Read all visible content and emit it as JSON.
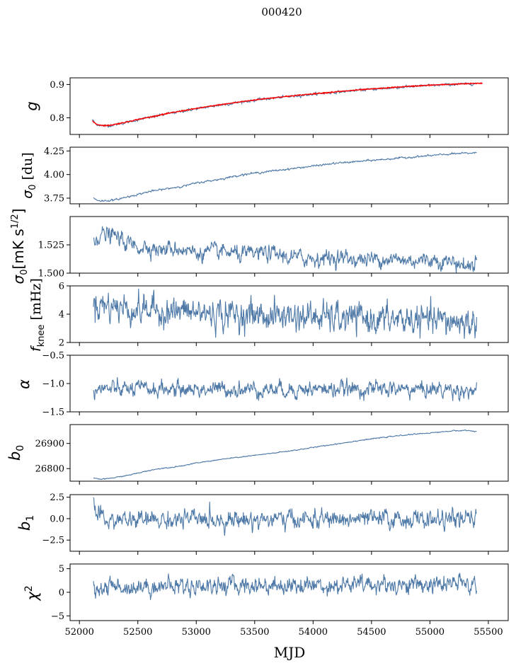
{
  "figure": {
    "title": "000420",
    "xlabel": "MJD"
  },
  "chart_data": [
    {
      "type": "line",
      "panel": "g",
      "ylabel": "g",
      "ylim": [
        0.75,
        0.92
      ],
      "yticks": [
        0.8,
        0.9
      ],
      "ytick_labels": [
        "0.8",
        "0.9"
      ],
      "xlim": [
        51920,
        55670
      ],
      "series": [
        {
          "name": "g (data)",
          "color": "#4e79a7",
          "x": [
            52110,
            52130,
            52150,
            52200,
            52250,
            52300,
            52400,
            52500,
            52600,
            52700,
            52800,
            52900,
            53000,
            53200,
            53400,
            53600,
            53800,
            54000,
            54200,
            54400,
            54600,
            54800,
            55000,
            55200,
            55400
          ],
          "y": [
            0.795,
            0.785,
            0.78,
            0.776,
            0.776,
            0.779,
            0.786,
            0.794,
            0.801,
            0.808,
            0.815,
            0.821,
            0.827,
            0.838,
            0.848,
            0.857,
            0.864,
            0.871,
            0.877,
            0.883,
            0.888,
            0.893,
            0.897,
            0.9,
            0.903
          ]
        },
        {
          "name": "g (fit)",
          "color": "#ff0000",
          "x": [
            52110,
            52130,
            52150,
            52200,
            52250,
            52300,
            52400,
            52500,
            52600,
            52700,
            52800,
            52900,
            53000,
            53200,
            53400,
            53600,
            53800,
            54000,
            54200,
            54400,
            54600,
            54800,
            55000,
            55200,
            55450
          ],
          "y": [
            0.79,
            0.785,
            0.78,
            0.777,
            0.777,
            0.78,
            0.787,
            0.795,
            0.802,
            0.809,
            0.816,
            0.822,
            0.828,
            0.839,
            0.849,
            0.858,
            0.865,
            0.872,
            0.878,
            0.884,
            0.889,
            0.894,
            0.898,
            0.901,
            0.904
          ]
        }
      ],
      "noise": 0.0015
    },
    {
      "type": "line",
      "panel": "sigma0_du",
      "ylabel": "σ0 [du]",
      "ylim": [
        3.69,
        4.29
      ],
      "yticks": [
        3.75,
        4.0,
        4.25
      ],
      "ytick_labels": [
        "3.75",
        "4.00",
        "4.25"
      ],
      "xlim": [
        51920,
        55670
      ],
      "series": [
        {
          "name": "sigma0",
          "color": "#4e79a7",
          "x": [
            52120,
            52150,
            52200,
            52300,
            52400,
            52500,
            52600,
            52700,
            52800,
            52900,
            53000,
            53200,
            53400,
            53600,
            53800,
            54000,
            54200,
            54400,
            54600,
            54800,
            55000,
            55200,
            55400
          ],
          "y": [
            3.75,
            3.73,
            3.72,
            3.73,
            3.76,
            3.79,
            3.82,
            3.84,
            3.86,
            3.88,
            3.91,
            3.95,
            4.0,
            4.03,
            4.06,
            4.09,
            4.12,
            4.14,
            4.16,
            4.18,
            4.2,
            4.22,
            4.23
          ]
        }
      ],
      "noise": 0.004
    },
    {
      "type": "line",
      "panel": "sigma0_mK",
      "ylabel": "σ0[mK s^1/2]",
      "ylim": [
        1.5,
        1.55
      ],
      "yticks": [
        1.5,
        1.525
      ],
      "ytick_labels": [
        "1.500",
        "1.525"
      ],
      "xlim": [
        51920,
        55670
      ],
      "series": [
        {
          "name": "sigma0_mK",
          "color": "#4e79a7",
          "x": [
            52120,
            52200,
            52300,
            52400,
            52500,
            52600,
            52700,
            52800,
            52900,
            53000,
            53200,
            53400,
            53600,
            53800,
            54000,
            54200,
            54400,
            54600,
            54800,
            55000,
            55200,
            55350,
            55400
          ],
          "y": [
            1.531,
            1.534,
            1.533,
            1.527,
            1.523,
            1.524,
            1.52,
            1.522,
            1.521,
            1.518,
            1.519,
            1.516,
            1.518,
            1.514,
            1.513,
            1.514,
            1.512,
            1.513,
            1.511,
            1.512,
            1.51,
            1.505,
            1.512
          ]
        }
      ],
      "noise": 0.003
    },
    {
      "type": "line",
      "panel": "fknee",
      "ylabel": "f_knee [mHz]",
      "ylim": [
        2,
        6
      ],
      "yticks": [
        2,
        4,
        6
      ],
      "ytick_labels": [
        "2",
        "4",
        "6"
      ],
      "xlim": [
        51920,
        55670
      ],
      "series": [
        {
          "name": "fknee",
          "color": "#4e79a7",
          "x": [
            52120,
            52200,
            52400,
            52600,
            52800,
            53000,
            53200,
            53400,
            53600,
            53800,
            54000,
            54200,
            54400,
            54600,
            54800,
            55000,
            55200,
            55400
          ],
          "y": [
            4.8,
            4.7,
            4.4,
            4.3,
            4.2,
            4.1,
            4.0,
            4.0,
            3.9,
            3.9,
            3.8,
            3.7,
            3.7,
            3.6,
            3.6,
            3.5,
            3.5,
            3.3
          ]
        }
      ],
      "noise": 0.45
    },
    {
      "type": "line",
      "panel": "alpha",
      "ylabel": "α",
      "ylim": [
        -1.5,
        -0.5
      ],
      "yticks": [
        -1.5,
        -1.0,
        -0.5
      ],
      "ytick_labels": [
        "−1.5",
        "−1.0",
        "−0.5"
      ],
      "xlim": [
        51920,
        55670
      ],
      "series": [
        {
          "name": "alpha",
          "color": "#4e79a7",
          "x": [
            52120,
            52500,
            53000,
            53500,
            54000,
            54500,
            55000,
            55400
          ],
          "y": [
            -1.1,
            -1.1,
            -1.1,
            -1.1,
            -1.1,
            -1.1,
            -1.1,
            -1.12
          ]
        }
      ],
      "noise": 0.06
    },
    {
      "type": "line",
      "panel": "b0",
      "ylabel": "b0",
      "ylim": [
        26750,
        26975
      ],
      "yticks": [
        26800,
        26900
      ],
      "ytick_labels": [
        "26800",
        "26900"
      ],
      "xlim": [
        51920,
        55670
      ],
      "series": [
        {
          "name": "b0",
          "color": "#4e79a7",
          "x": [
            52120,
            52150,
            52200,
            52300,
            52400,
            52500,
            52600,
            52700,
            52800,
            52900,
            53000,
            53200,
            53400,
            53600,
            53800,
            54000,
            54200,
            54400,
            54600,
            54800,
            55000,
            55200,
            55300,
            55400
          ],
          "y": [
            26762,
            26759,
            26758,
            26764,
            26772,
            26782,
            26793,
            26801,
            26806,
            26813,
            26822,
            26836,
            26847,
            26858,
            26870,
            26884,
            26898,
            26912,
            26924,
            26934,
            26942,
            26950,
            26952,
            26948
          ]
        }
      ],
      "noise": 0.8
    },
    {
      "type": "line",
      "panel": "b1",
      "ylabel": "b1",
      "ylim": [
        -3.8,
        2.8
      ],
      "yticks": [
        -2.5,
        0.0,
        2.5
      ],
      "ytick_labels": [
        "−2.5",
        "0.0",
        "2.5"
      ],
      "xlim": [
        51920,
        55670
      ],
      "series": [
        {
          "name": "b1",
          "color": "#4e79a7",
          "x": [
            52120,
            52140,
            52200,
            52500,
            53000,
            53500,
            54000,
            54500,
            55000,
            55400
          ],
          "y": [
            2.3,
            0.5,
            -0.2,
            -0.2,
            -0.1,
            -0.1,
            -0.1,
            -0.1,
            -0.1,
            -0.1
          ]
        }
      ],
      "noise": 0.45
    },
    {
      "type": "line",
      "panel": "chi2",
      "ylabel": "χ2",
      "ylim": [
        -6,
        6
      ],
      "yticks": [
        -5,
        0,
        5
      ],
      "ytick_labels": [
        "−5",
        "0",
        "5"
      ],
      "xlim": [
        51920,
        55670
      ],
      "series": [
        {
          "name": "chi2",
          "color": "#4e79a7",
          "x": [
            52120,
            52500,
            53000,
            53500,
            54000,
            54500,
            55000,
            55400
          ],
          "y": [
            1.0,
            1.2,
            1.4,
            1.5,
            1.5,
            1.6,
            1.6,
            1.7
          ]
        }
      ],
      "noise": 0.8
    }
  ],
  "xaxis": {
    "ticks": [
      52000,
      52500,
      53000,
      53500,
      54000,
      54500,
      55000,
      55500
    ],
    "tick_labels": [
      "52000",
      "52500",
      "53000",
      "53500",
      "54000",
      "54500",
      "55000",
      "55500"
    ]
  }
}
